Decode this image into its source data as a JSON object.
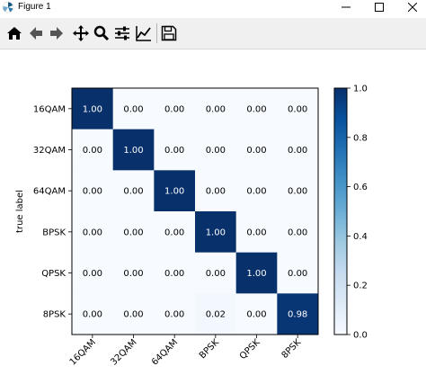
{
  "window": {
    "title": "Figure 1"
  },
  "toolbar": {
    "buttons": [
      {
        "name": "home",
        "icon": "home-icon"
      },
      {
        "name": "back",
        "icon": "arrow-left-icon"
      },
      {
        "name": "forward",
        "icon": "arrow-right-icon"
      },
      {
        "name": "pan",
        "icon": "move-icon"
      },
      {
        "name": "zoom",
        "icon": "magnifier-icon"
      },
      {
        "name": "subplots",
        "icon": "sliders-icon"
      },
      {
        "name": "edit-axis",
        "icon": "line-chart-icon"
      },
      {
        "name": "save",
        "icon": "floppy-disk-icon"
      }
    ]
  },
  "colors": {
    "low": "#f7fbff",
    "high": "#08306b",
    "text_dark": "#000000",
    "text_light": "#ffffff"
  },
  "chart_data": {
    "type": "heatmap",
    "title": "",
    "xlabel": "",
    "ylabel": "true label",
    "rows": [
      "16QAM",
      "32QAM",
      "64QAM",
      "BPSK",
      "QPSK",
      "8PSK"
    ],
    "cols": [
      "16QAM",
      "32QAM",
      "64QAM",
      "BPSK",
      "QPSK",
      "8PSK"
    ],
    "values": [
      [
        1.0,
        0.0,
        0.0,
        0.0,
        0.0,
        0.0
      ],
      [
        0.0,
        1.0,
        0.0,
        0.0,
        0.0,
        0.0
      ],
      [
        0.0,
        0.0,
        1.0,
        0.0,
        0.0,
        0.0
      ],
      [
        0.0,
        0.0,
        0.0,
        1.0,
        0.0,
        0.0
      ],
      [
        0.0,
        0.0,
        0.0,
        0.0,
        1.0,
        0.0
      ],
      [
        0.0,
        0.0,
        0.0,
        0.02,
        0.0,
        0.98
      ]
    ],
    "labels": [
      [
        "1.00",
        "0.00",
        "0.00",
        "0.00",
        "0.00",
        "0.00"
      ],
      [
        "0.00",
        "1.00",
        "0.00",
        "0.00",
        "0.00",
        "0.00"
      ],
      [
        "0.00",
        "0.00",
        "1.00",
        "0.00",
        "0.00",
        "0.00"
      ],
      [
        "0.00",
        "0.00",
        "0.00",
        "1.00",
        "0.00",
        "0.00"
      ],
      [
        "0.00",
        "0.00",
        "0.00",
        "0.00",
        "1.00",
        "0.00"
      ],
      [
        "0.00",
        "0.00",
        "0.00",
        "0.02",
        "0.00",
        "0.98"
      ]
    ],
    "colorbar": {
      "range": [
        0.0,
        1.0
      ],
      "ticks": [
        0.0,
        0.2,
        0.4,
        0.6,
        0.8,
        1.0
      ],
      "tick_labels": [
        "0.0",
        "0.2",
        "0.4",
        "0.6",
        "0.8",
        "1.0"
      ]
    }
  }
}
